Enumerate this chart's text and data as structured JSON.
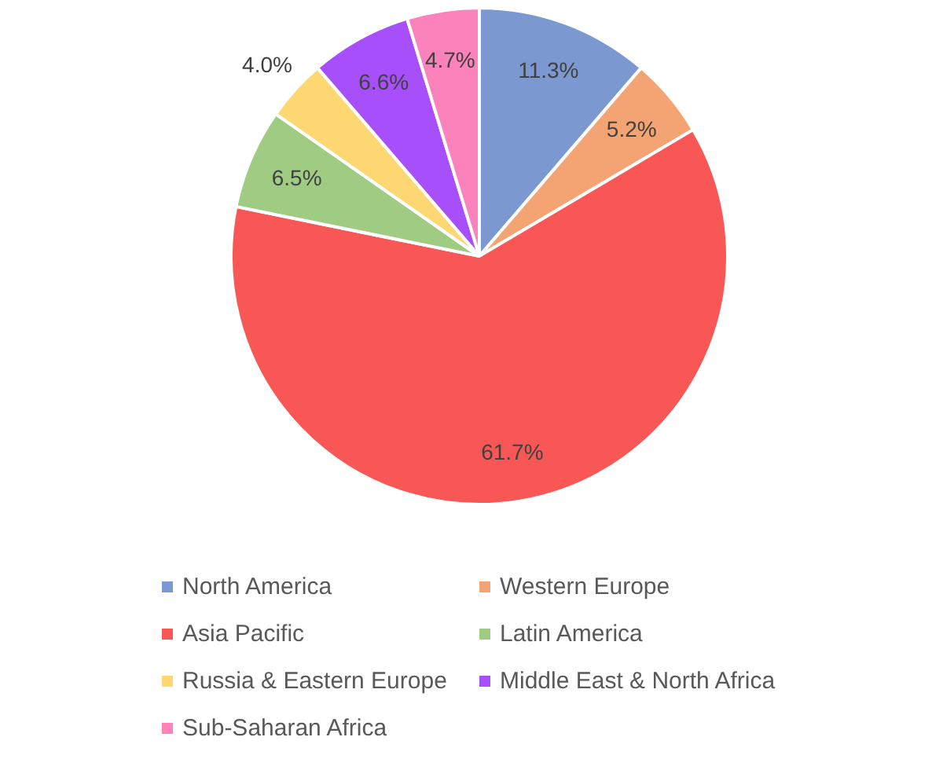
{
  "chart_data": {
    "type": "pie",
    "categories": [
      "North America",
      "Western Europe",
      "Asia Pacific",
      "Latin America",
      "Russia & Eastern Europe",
      "Middle East & North Africa",
      "Sub-Saharan Africa"
    ],
    "values": [
      11.3,
      5.2,
      61.7,
      6.5,
      4.0,
      6.6,
      4.7
    ],
    "colors": [
      "#7b98d1",
      "#f4a472",
      "#f95656",
      "#9fcb82",
      "#fdd872",
      "#a64ffa",
      "#fb82ba"
    ],
    "value_labels": [
      "11.3%",
      "5.2%",
      "61.7%",
      "6.5%",
      "4.0%",
      "6.6%",
      "4.7%"
    ],
    "legend": "bottom"
  }
}
